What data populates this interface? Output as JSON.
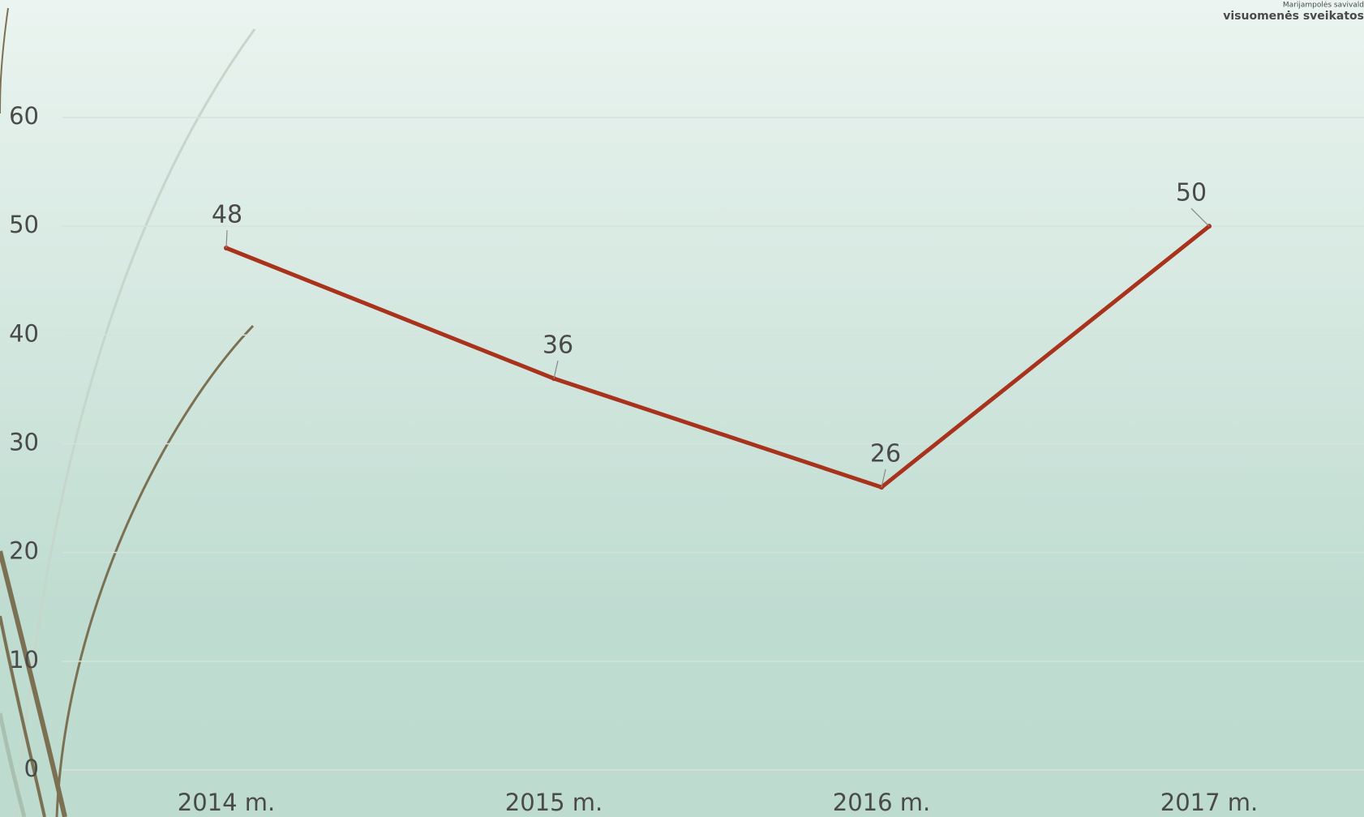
{
  "chart_data": {
    "type": "line",
    "categories": [
      "2014 m.",
      "2015 m.",
      "2016 m.",
      "2017 m."
    ],
    "series": [
      {
        "name": null,
        "color": "#a8321c",
        "values": [
          48,
          36,
          26,
          50
        ]
      }
    ],
    "ylim": [
      0,
      60
    ],
    "yticks": [
      0,
      10,
      20,
      30,
      40,
      50,
      60
    ],
    "grid": true,
    "logo_text": [
      "Marijampolės savivald",
      "visuomenės sveikatos"
    ]
  }
}
